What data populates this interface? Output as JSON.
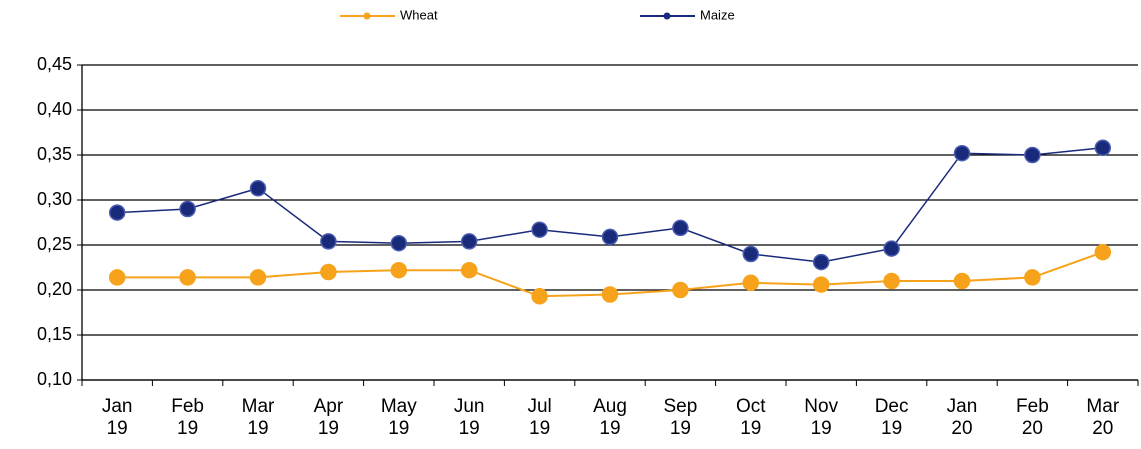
{
  "chart_data": {
    "type": "line",
    "categories": [
      "Jan 19",
      "Feb 19",
      "Mar 19",
      "Apr 19",
      "May 19",
      "Jun 19",
      "Jul 19",
      "Aug 19",
      "Sep 19",
      "Oct 19",
      "Nov 19",
      "Dec 19",
      "Jan 20",
      "Feb 20",
      "Mar 20"
    ],
    "series": [
      {
        "name": "Wheat",
        "color": "#f7a21b",
        "values": [
          0.214,
          0.214,
          0.214,
          0.22,
          0.222,
          0.222,
          0.193,
          0.195,
          0.2,
          0.208,
          0.206,
          0.21,
          0.21,
          0.214,
          0.242
        ]
      },
      {
        "name": "Maize",
        "color": "#1a2a7a",
        "values": [
          0.286,
          0.29,
          0.313,
          0.254,
          0.252,
          0.254,
          0.267,
          0.259,
          0.269,
          0.24,
          0.231,
          0.246,
          0.352,
          0.35,
          0.358
        ]
      }
    ],
    "ylim": [
      0.1,
      0.45
    ],
    "yticks": [
      {
        "value": 0.1,
        "label": "0,10"
      },
      {
        "value": 0.15,
        "label": "0,15"
      },
      {
        "value": 0.2,
        "label": "0,20"
      },
      {
        "value": 0.25,
        "label": "0,25"
      },
      {
        "value": 0.3,
        "label": "0,30"
      },
      {
        "value": 0.35,
        "label": "0,35"
      },
      {
        "value": 0.4,
        "label": "0,40"
      },
      {
        "value": 0.45,
        "label": "0,45"
      }
    ],
    "grid": true,
    "legend": "top"
  }
}
